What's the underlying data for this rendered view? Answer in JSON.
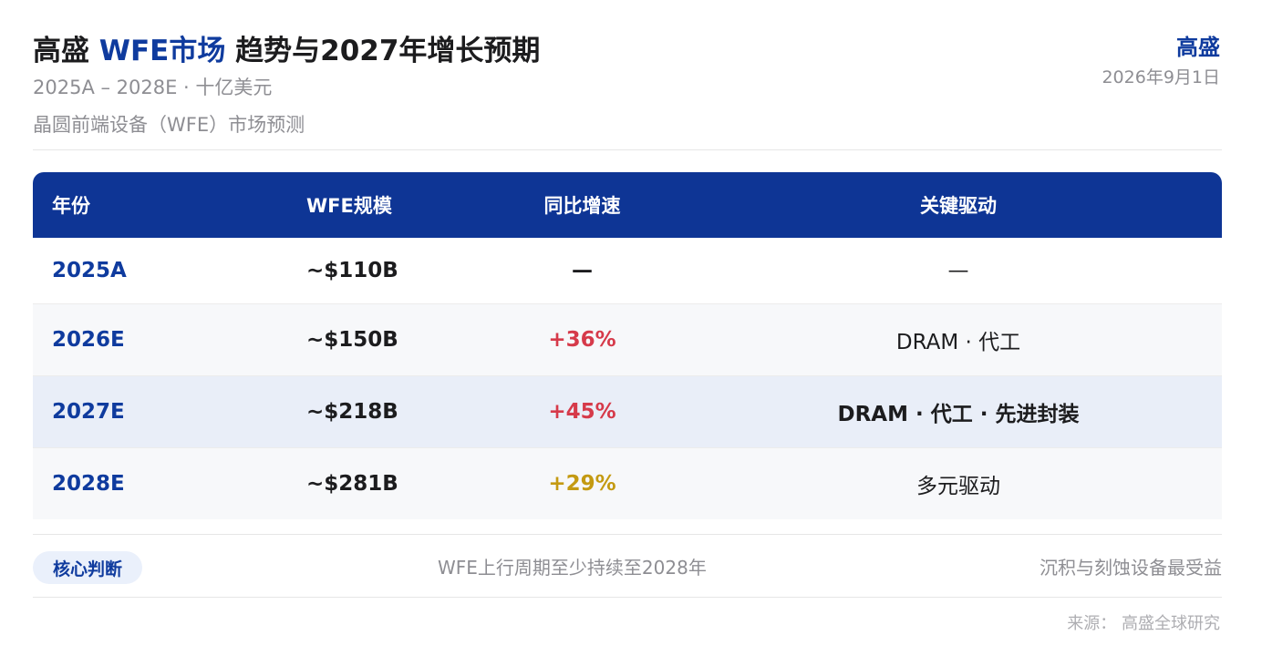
{
  "header": {
    "title_prefix": "高盛 ",
    "title_accent": "WFE市场",
    "title_suffix": " 趋势与2027年增长预期",
    "subtitle": "2025A – 2028E · 十亿美元",
    "caption": "晶圆前端设备（WFE）市场预测",
    "brand": "高盛",
    "date": "2026年9月1日"
  },
  "table": {
    "columns": [
      "年份",
      "WFE规模",
      "同比增速",
      "关键驱动"
    ],
    "rows": [
      {
        "year": "2025A",
        "size": "~$110B",
        "growth": "—",
        "growth_color": "#1c1c1e",
        "driver": "—"
      },
      {
        "year": "2026E",
        "size": "~$150B",
        "growth": "+36%",
        "growth_color": "#d63a4a",
        "driver": "DRAM · 代工"
      },
      {
        "year": "2027E",
        "size": "~$218B",
        "growth": "+45%",
        "growth_color": "#d63a4a",
        "driver": "DRAM · 代工 · 先进封装"
      },
      {
        "year": "2028E",
        "size": "~$281B",
        "growth": "+29%",
        "growth_color": "#c49a12",
        "driver": "多元驱动"
      }
    ]
  },
  "footer": {
    "badge": "核心判断",
    "core": "WFE上行周期至少持续至2028年",
    "benefit": "沉积与刻蚀设备最受益",
    "source": "来源： 高盛全球研究"
  },
  "colors": {
    "accent": "#0f3b9e",
    "header_bg": "#0e3595",
    "highlight_row": "#e9eef8"
  }
}
